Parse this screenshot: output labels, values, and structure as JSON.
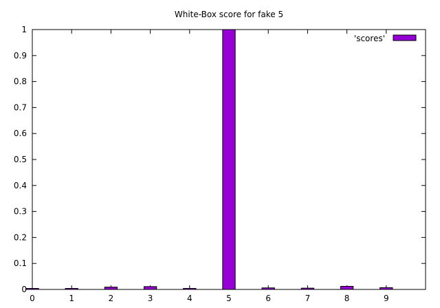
{
  "chart_data": {
    "type": "bar",
    "title": "White-Box score for fake 5",
    "xlabel": "",
    "ylabel": "",
    "categories": [
      "0",
      "1",
      "2",
      "3",
      "4",
      "5",
      "6",
      "7",
      "8",
      "9"
    ],
    "series": [
      {
        "name": "'scores'",
        "values": [
          0.002,
          0.001,
          0.009,
          0.011,
          0.004,
          1.0,
          0.006,
          0.005,
          0.012,
          0.007
        ]
      }
    ],
    "xlim": [
      0,
      10
    ],
    "ylim": [
      0,
      1
    ],
    "yticks": [
      "0",
      "0.1",
      "0.2",
      "0.3",
      "0.4",
      "0.5",
      "0.6",
      "0.7",
      "0.8",
      "0.9",
      "1"
    ],
    "xticks": [
      "0",
      "1",
      "2",
      "3",
      "4",
      "5",
      "6",
      "7",
      "8",
      "9"
    ],
    "grid": false,
    "legend": "top-right",
    "colors": {
      "bar": "#9400d3",
      "bar_border": "#000000"
    }
  }
}
